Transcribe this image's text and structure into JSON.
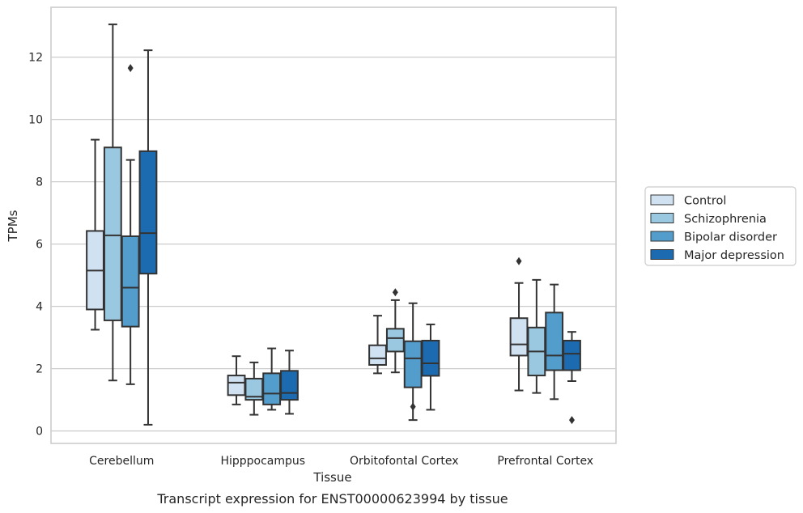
{
  "caption": "Transcript expression for ENST00000623994 by tissue",
  "chart_data": {
    "type": "box",
    "title": "",
    "xlabel": "Tissue",
    "ylabel": "TPMs",
    "ylim": [
      -0.4,
      13.6
    ],
    "yticks": [
      0,
      2,
      4,
      6,
      8,
      10,
      12
    ],
    "grid": "horizontal",
    "legend_position": "center-right, outside plot",
    "categories": [
      "Cerebellum",
      "Hipppocampus",
      "Orbitofontal Cortex",
      "Prefrontal Cortex"
    ],
    "series": [
      {
        "name": "Control",
        "color": "#d0e1f2",
        "boxes": [
          {
            "whisker_low": 3.25,
            "q1": 3.9,
            "median": 5.15,
            "q3": 6.42,
            "whisker_high": 9.35,
            "outliers": []
          },
          {
            "whisker_low": 0.85,
            "q1": 1.15,
            "median": 1.55,
            "q3": 1.78,
            "whisker_high": 2.4,
            "outliers": []
          },
          {
            "whisker_low": 1.85,
            "q1": 2.12,
            "median": 2.33,
            "q3": 2.75,
            "whisker_high": 3.7,
            "outliers": []
          },
          {
            "whisker_low": 1.3,
            "q1": 2.42,
            "median": 2.78,
            "q3": 3.62,
            "whisker_high": 4.75,
            "outliers": [
              5.45
            ]
          }
        ]
      },
      {
        "name": "Schizophrenia",
        "color": "#9ac8e0",
        "boxes": [
          {
            "whisker_low": 1.62,
            "q1": 3.55,
            "median": 6.28,
            "q3": 9.1,
            "whisker_high": 13.05,
            "outliers": []
          },
          {
            "whisker_low": 0.52,
            "q1": 1.0,
            "median": 1.1,
            "q3": 1.68,
            "whisker_high": 2.2,
            "outliers": []
          },
          {
            "whisker_low": 1.88,
            "q1": 2.55,
            "median": 2.98,
            "q3": 3.28,
            "whisker_high": 4.2,
            "outliers": [
              4.45
            ]
          },
          {
            "whisker_low": 1.22,
            "q1": 1.78,
            "median": 2.55,
            "q3": 3.32,
            "whisker_high": 4.85,
            "outliers": []
          }
        ]
      },
      {
        "name": "Bipolar disorder",
        "color": "#529dcc",
        "boxes": [
          {
            "whisker_low": 1.5,
            "q1": 3.35,
            "median": 4.6,
            "q3": 6.25,
            "whisker_high": 8.7,
            "outliers": [
              11.65
            ]
          },
          {
            "whisker_low": 0.68,
            "q1": 0.85,
            "median": 1.2,
            "q3": 1.85,
            "whisker_high": 2.65,
            "outliers": []
          },
          {
            "whisker_low": 0.35,
            "q1": 1.4,
            "median": 2.33,
            "q3": 2.88,
            "whisker_high": 4.1,
            "outliers": [
              0.78
            ]
          },
          {
            "whisker_low": 1.02,
            "q1": 1.95,
            "median": 2.42,
            "q3": 3.8,
            "whisker_high": 4.7,
            "outliers": []
          }
        ]
      },
      {
        "name": "Major depression",
        "color": "#1c6aaf",
        "boxes": [
          {
            "whisker_low": 0.2,
            "q1": 5.05,
            "median": 6.35,
            "q3": 8.98,
            "whisker_high": 12.22,
            "outliers": []
          },
          {
            "whisker_low": 0.55,
            "q1": 1.0,
            "median": 1.22,
            "q3": 1.93,
            "whisker_high": 2.58,
            "outliers": []
          },
          {
            "whisker_low": 0.68,
            "q1": 1.77,
            "median": 2.17,
            "q3": 2.9,
            "whisker_high": 3.42,
            "outliers": []
          },
          {
            "whisker_low": 1.6,
            "q1": 1.95,
            "median": 2.48,
            "q3": 2.9,
            "whisker_high": 3.18,
            "outliers": [
              0.35
            ]
          }
        ]
      }
    ]
  }
}
